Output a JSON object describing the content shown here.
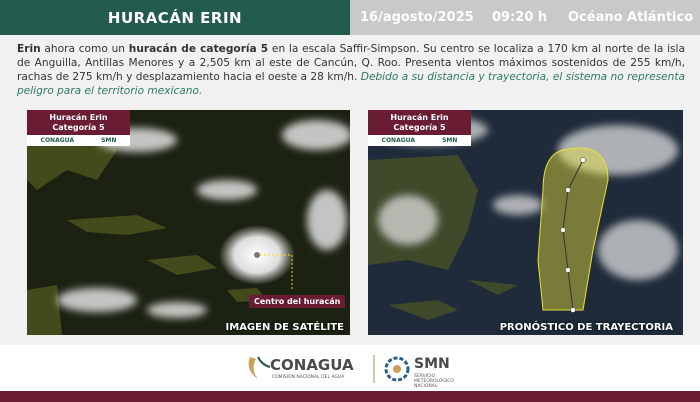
{
  "header": {
    "title": "HURACÁN ERIN",
    "date": "16/agosto/2025",
    "time": "09:20 h",
    "region": "Océano Atlántico"
  },
  "bulletin": {
    "segments": [
      {
        "text": "Erin",
        "style": "bold"
      },
      {
        "text": " ahora como un ",
        "style": "normal"
      },
      {
        "text": "huracán de categoría 5",
        "style": "bold"
      },
      {
        "text": " en la escala Saffir-Simpson. Su centro se localiza a 170 km al norte de la isla de Anguilla, Antillas Menores y a 2,505 km al este de Cancún, Q. Roo. Presenta vientos máximos sostenidos de 255 km/h, rachas de 275 km/h y desplazamiento hacia el oeste a 28 km/h. ",
        "style": "normal"
      },
      {
        "text": "Debido a su distancia y trayectoria, el sistema no representa peligro para el territorio mexicano.",
        "style": "italic"
      }
    ]
  },
  "panels": [
    {
      "badge_title": "Huracán Erin",
      "badge_subtitle": "Categoría 5",
      "badge_logos": [
        "CONAGUA",
        "SMN"
      ],
      "marker_label": "Centro del huracán",
      "caption": "IMAGEN DE SATÉLITE"
    },
    {
      "badge_title": "Huracán Erin",
      "badge_subtitle": "Categoría 5",
      "badge_logos": [
        "CONAGUA",
        "SMN"
      ],
      "caption": "PRONÓSTICO DE TRAYECTORIA"
    }
  ],
  "footer": {
    "logo_name": "CONAGUA",
    "logo_tagline": "COMISIÓN NACIONAL DEL AGUA",
    "smn_name": "SMN",
    "smn_tagline": "SERVICIO METEOROLÓGICO NACIONAL"
  }
}
